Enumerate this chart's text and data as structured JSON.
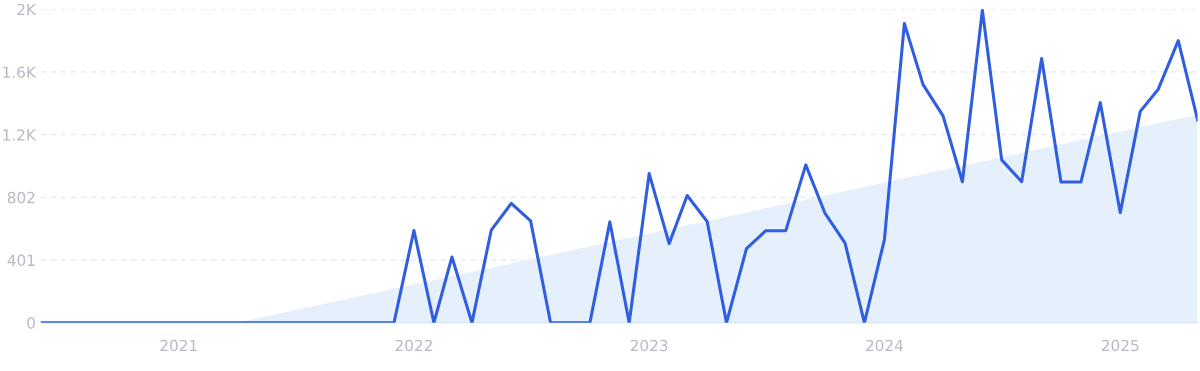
{
  "chart_data": {
    "type": "line",
    "x": [
      "2020-06",
      "2020-07",
      "2020-08",
      "2020-09",
      "2020-10",
      "2020-11",
      "2020-12",
      "2021-01",
      "2021-02",
      "2021-03",
      "2021-04",
      "2021-05",
      "2021-06",
      "2021-07",
      "2021-08",
      "2021-09",
      "2021-10",
      "2021-11",
      "2021-12",
      "2022-01",
      "2022-02",
      "2022-03",
      "2022-04",
      "2022-05",
      "2022-06",
      "2022-07",
      "2022-08",
      "2022-09",
      "2022-10",
      "2022-11",
      "2022-12",
      "2023-01",
      "2023-02",
      "2023-03",
      "2023-04",
      "2023-05",
      "2023-06",
      "2023-07",
      "2023-08",
      "2023-09",
      "2023-10",
      "2023-11",
      "2023-12",
      "2024-01",
      "2024-02",
      "2024-03",
      "2024-04",
      "2024-05",
      "2024-06",
      "2024-07",
      "2024-08",
      "2024-09",
      "2024-10",
      "2024-11",
      "2024-12",
      "2025-01",
      "2025-02",
      "2025-03",
      "2025-04",
      "2025-05"
    ],
    "series": [
      {
        "type": "area",
        "color": "#e6effc",
        "x": [
          "2021-04",
          "2025-05"
        ],
        "values": [
          0,
          1330
        ]
      },
      {
        "color": "#2f5fe0",
        "values": [
          0,
          0,
          0,
          0,
          0,
          0,
          0,
          0,
          0,
          0,
          0,
          0,
          0,
          0,
          0,
          0,
          0,
          0,
          0,
          590,
          0,
          421,
          0,
          593,
          763,
          652,
          0,
          0,
          0,
          645,
          0,
          954,
          506,
          814,
          648,
          0,
          474,
          589,
          589,
          1010,
          699,
          509,
          0,
          531,
          1914,
          1523,
          1323,
          902,
          2000,
          1042,
          902,
          1690,
          900,
          900,
          1408,
          704,
          1352,
          1494,
          1804,
          1298
        ]
      }
    ],
    "xlim": [
      "2020-06",
      "2025-05"
    ],
    "xticks": [
      {
        "value": "2021-01",
        "label": "2021"
      },
      {
        "value": "2022-01",
        "label": "2022"
      },
      {
        "value": "2023-01",
        "label": "2023"
      },
      {
        "value": "2024-01",
        "label": "2024"
      },
      {
        "value": "2025-01",
        "label": "2025"
      }
    ],
    "ylim": [
      0,
      2005
    ],
    "yticks": [
      0,
      401,
      802,
      {
        "value": 1203,
        "label": "1.2K"
      },
      {
        "value": 1604,
        "label": "1.6K"
      },
      {
        "value": 2005,
        "label": "2K"
      }
    ],
    "grid": "y",
    "legend": false,
    "marker": "none",
    "line_style": "solid"
  }
}
